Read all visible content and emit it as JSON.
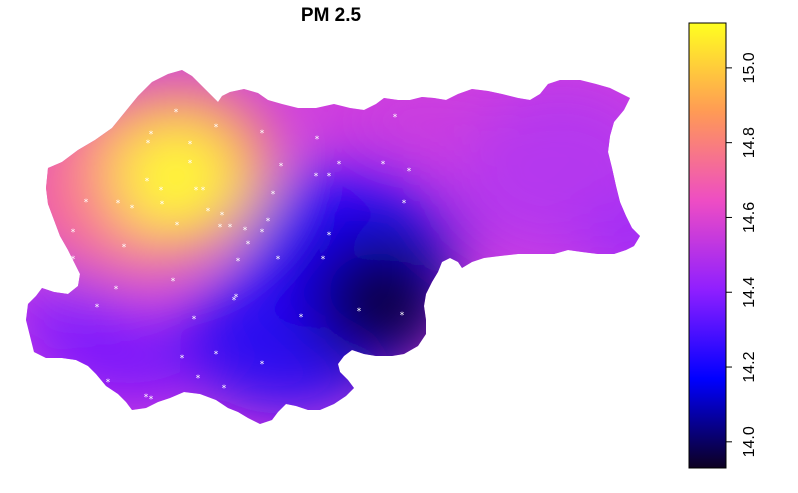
{
  "title": "PM 2.5",
  "legend": {
    "ticks": [
      "14.0",
      "14.2",
      "14.4",
      "14.6",
      "14.8",
      "15.0"
    ],
    "min": 13.93,
    "max": 15.12,
    "colors": [
      "#0d0021",
      "#0000ff",
      "#8f1fff",
      "#ee4dc4",
      "#ff9a55",
      "#ffff20"
    ]
  },
  "stations": {
    "marker": "*",
    "count": 58
  }
}
